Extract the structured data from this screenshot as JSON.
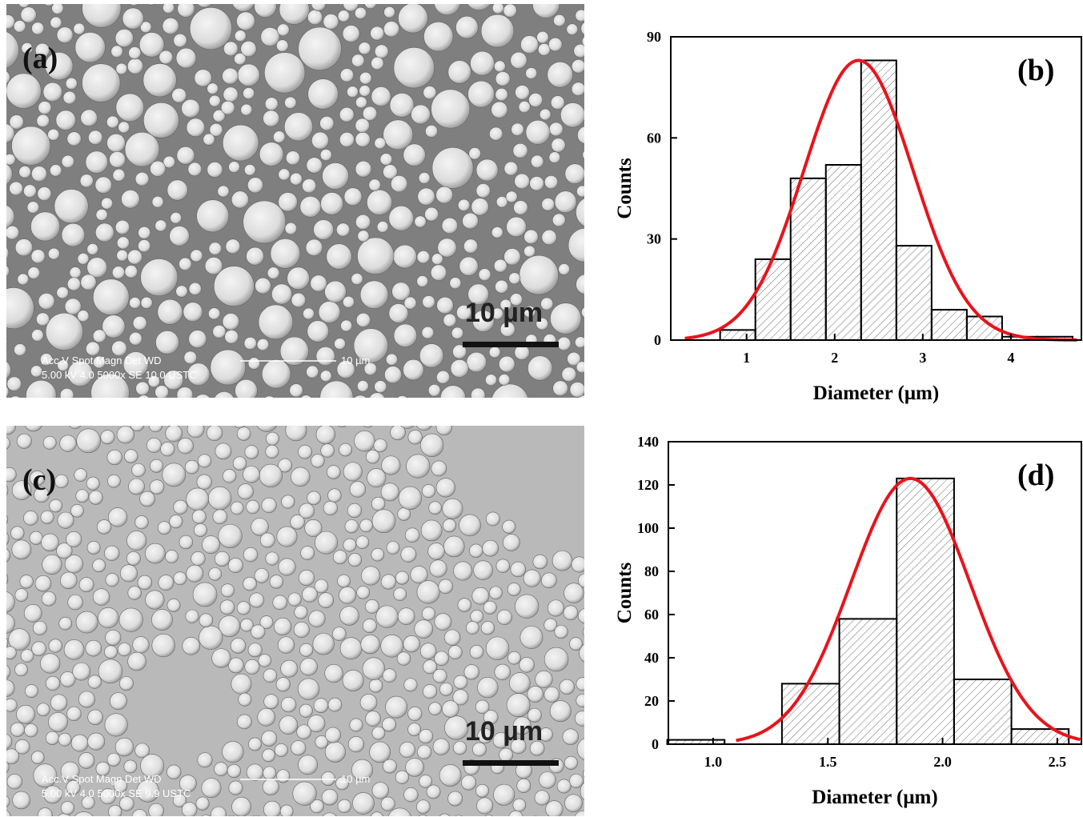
{
  "images": [
    {
      "label": "(a)",
      "scale_bar": "10 µm",
      "info_header": "Acc.V  Spot Magn   Det  WD",
      "info_values": "5.00 kV 4.0  5000x   SE  10.0  USTC",
      "info_scale": "10 µm"
    },
    {
      "label": "(c)",
      "scale_bar": "10 µm",
      "info_header": "Acc.V  Spot Magn   Det  WD",
      "info_values": "5.00 kV 4.0  5000x   SE   9.9  USTC",
      "info_scale": "10 µm"
    }
  ],
  "chart_data": [
    {
      "type": "histogram",
      "panel_label": "(b)",
      "x_label": "Diameter (μm)",
      "y_label": "Counts",
      "bins": [
        0.7,
        1.1,
        1.5,
        1.9,
        2.3,
        2.7,
        3.1,
        3.5,
        3.9,
        4.3,
        4.7
      ],
      "values": [
        3,
        24,
        48,
        52,
        83,
        28,
        9,
        7,
        1,
        1
      ],
      "xlim": [
        0.14,
        4.8
      ],
      "xticks": [
        1,
        2,
        3,
        4
      ],
      "ylim": [
        0,
        90
      ],
      "yticks": [
        0,
        30,
        60,
        90
      ],
      "fit": {
        "color": "#e8141c",
        "peak": 83,
        "center": 2.27,
        "sigma": 0.62,
        "range": [
          0.3,
          4.75
        ]
      }
    },
    {
      "type": "histogram",
      "panel_label": "(d)",
      "x_label": "Diameter (μm)",
      "y_label": "Counts",
      "bins": [
        0.8,
        1.05,
        1.3,
        1.55,
        1.8,
        2.05,
        2.3,
        2.55
      ],
      "values": [
        2,
        0,
        28,
        58,
        123,
        30,
        7
      ],
      "xlim": [
        0.805,
        2.605
      ],
      "xticks": [
        {
          "value": 1,
          "label": "1.0"
        },
        1.5,
        {
          "value": 2,
          "label": "2.0"
        },
        2.5
      ],
      "ylim": [
        0,
        140
      ],
      "yticks": [
        0,
        20,
        40,
        60,
        80,
        100,
        120,
        140
      ],
      "fit": {
        "color": "#e8141c",
        "peak": 123,
        "center": 1.86,
        "sigma": 0.26,
        "range": [
          1.1,
          2.6
        ]
      }
    }
  ]
}
